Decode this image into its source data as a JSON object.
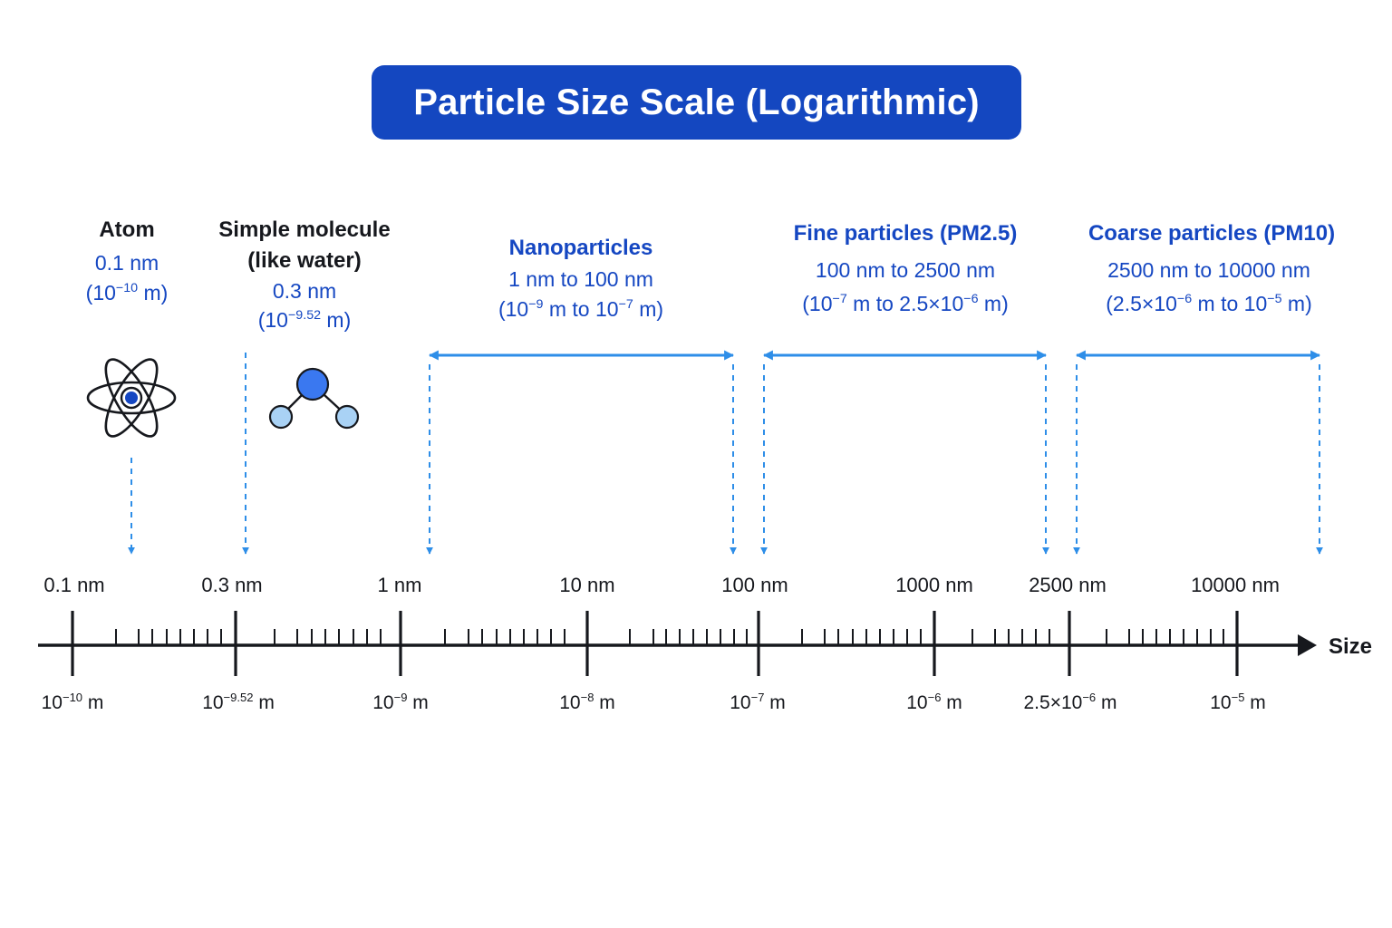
{
  "title": "Particle Size Scale (Logarithmic)",
  "colors": {
    "title_bg": "#1447c0",
    "label_blue": "#1547c2",
    "arrow_blue": "#2e8ee8",
    "axis": "#16181d",
    "molecule_center": "#3a78f0",
    "molecule_side": "#a9d2f5"
  },
  "icons": {
    "atom": "atom-icon",
    "molecule": "molecule-icon"
  },
  "categories": {
    "atom": {
      "name": "Atom",
      "size_nm": "0.1 nm",
      "size_m": {
        "open": "(10",
        "exp": "−10",
        "close": " m)"
      }
    },
    "molecule": {
      "name_line1": "Simple molecule",
      "name_line2": "(like water)",
      "size_nm": "0.3 nm",
      "size_m": {
        "open": "(10",
        "exp": "−9.52",
        "close": " m)"
      }
    },
    "nano": {
      "name": "Nanoparticles",
      "range_nm": "1 nm to 100 nm",
      "range_m": {
        "a": "(10",
        "a_exp": "−9",
        "b": " m to 10",
        "b_exp": "−7",
        "c": " m)"
      }
    },
    "fine": {
      "name": "Fine particles (PM2.5)",
      "range_nm": "100 nm to 2500 nm",
      "range_m": {
        "a": "(10",
        "a_exp": "−7",
        "b": " m to 2.5×10",
        "b_exp": "−6",
        "c": " m)"
      }
    },
    "coarse": {
      "name": "Coarse particles (PM10)",
      "range_nm": "2500 nm to 10000 nm",
      "range_m": {
        "a": "(2.5×10",
        "a_exp": "−6",
        "b": " m to 10",
        "b_exp": "−5",
        "c": " m)"
      }
    }
  },
  "axis": {
    "label": "Size",
    "scale": "log",
    "ticks": [
      {
        "nm_label": "0.1 nm",
        "base": "10",
        "exp": "−10",
        "unit": " m",
        "log10_m": -10
      },
      {
        "nm_label": "0.3 nm",
        "base": "10",
        "exp": "−9.52",
        "unit": " m",
        "log10_m": -9.52
      },
      {
        "nm_label": "1 nm",
        "base": "10",
        "exp": "−9",
        "unit": " m",
        "log10_m": -9
      },
      {
        "nm_label": "10 nm",
        "base": "10",
        "exp": "−8",
        "unit": " m",
        "log10_m": -8
      },
      {
        "nm_label": "100 nm",
        "base": "10",
        "exp": "−7",
        "unit": " m",
        "log10_m": -7
      },
      {
        "nm_label": "1000 nm",
        "base": "10",
        "exp": "−6",
        "unit": " m",
        "log10_m": -6
      },
      {
        "nm_label": "2500 nm",
        "base": "2.5×10",
        "exp": "−6",
        "unit": " m",
        "log10_m": -5.6
      },
      {
        "nm_label": "10000 nm",
        "base": "10",
        "exp": "−5",
        "unit": " m",
        "log10_m": -5
      }
    ]
  }
}
